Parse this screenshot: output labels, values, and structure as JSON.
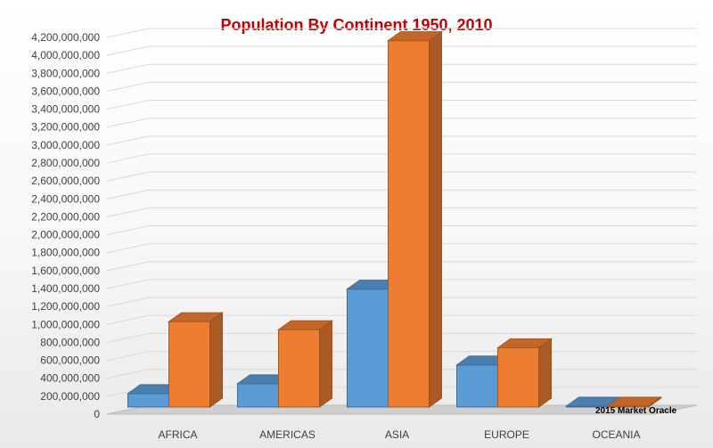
{
  "chart_data": {
    "type": "bar",
    "title": "Population By Continent 1950, 2010",
    "categories": [
      "AFRICA",
      "AMERICAS",
      "ASIA",
      "EUROPE",
      "OCEANIA"
    ],
    "series": [
      {
        "values": [
          229000000,
          339000000,
          1394000000,
          549000000,
          13000000
        ],
        "color": "#5b9bd5"
      },
      {
        "values": [
          1031000000,
          942000000,
          4164000000,
          740000000,
          37000000
        ],
        "color": "#ed7d31"
      }
    ],
    "ylim": [
      0,
      4200000000
    ],
    "ytick_step": 200000000,
    "ytick_labels": [
      "0",
      "200,000,000",
      "400,000,000",
      "600,000,000",
      "800,000,000",
      "1,000,000,000",
      "1,200,000,000",
      "1,400,000,000",
      "1,600,000,000",
      "1,800,000,000",
      "2,000,000,000",
      "2,200,000,000",
      "2,400,000,000",
      "2,600,000,000",
      "2,800,000,000",
      "3,000,000,000",
      "3,200,000,000",
      "3,400,000,000",
      "3,600,000,000",
      "3,800,000,000",
      "4,000,000,000",
      "4,200,000,000"
    ],
    "grid": true,
    "style": "3d-clustered-column"
  },
  "credit": "2015 Market Oracle"
}
